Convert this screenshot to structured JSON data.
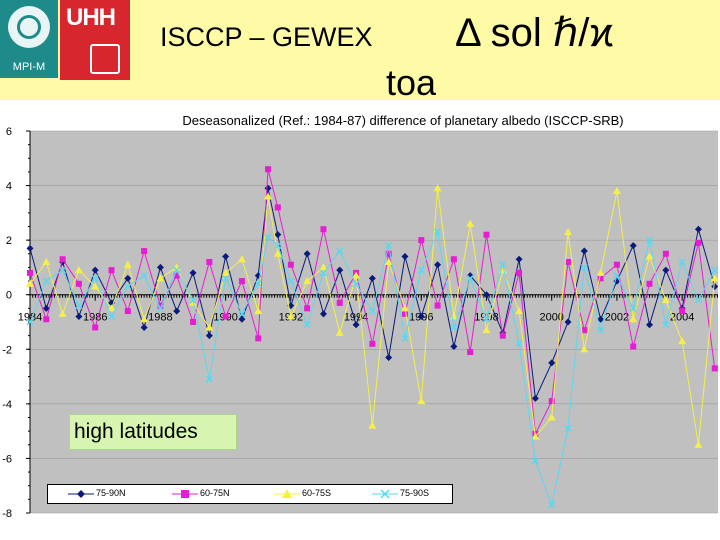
{
  "header": {
    "mpi_logo_text": "MPI-M",
    "uhh_logo_text": "UHH",
    "title": "ISCCP – GEWEX",
    "title_symbols": "Δ sol ℏ/ϰ",
    "title_sub": "toa"
  },
  "annotation": {
    "text": "high latitudes"
  },
  "chart_data": {
    "type": "line",
    "title": "Deseasonalized (Ref.: 1984-87) difference of planetary albedo (ISCCP-SRB)",
    "xlabel": "",
    "ylabel": "",
    "xlim": [
      1984,
      2005.1
    ],
    "ylim": [
      -8,
      6
    ],
    "yticks": [
      6,
      4,
      2,
      0,
      -2,
      -4,
      -6,
      -8
    ],
    "ytick_labels": [
      "6",
      "4",
      "2",
      "0",
      "-2",
      "-4",
      "-6",
      "-8"
    ],
    "xticks": [
      1984,
      1986,
      1988,
      1990,
      1992,
      1994,
      1996,
      1998,
      2000,
      2002,
      2004
    ],
    "xtick_labels": [
      "1984",
      "1986",
      "1988",
      "1990",
      "1992",
      "1994",
      "1996",
      "1998",
      "2000",
      "2002",
      "2004"
    ],
    "grid": true,
    "legend_position": "bottom",
    "x": [
      1984.0,
      1984.5,
      1985.0,
      1985.5,
      1986.0,
      1986.5,
      1987.0,
      1987.5,
      1988.0,
      1988.5,
      1989.0,
      1989.5,
      1990.0,
      1990.5,
      1991.0,
      1991.3,
      1991.6,
      1992.0,
      1992.5,
      1993.0,
      1993.5,
      1994.0,
      1994.5,
      1995.0,
      1995.5,
      1996.0,
      1996.5,
      1997.0,
      1997.5,
      1998.0,
      1998.5,
      1999.0,
      1999.5,
      2000.0,
      2000.5,
      2001.0,
      2001.5,
      2002.0,
      2002.5,
      2003.0,
      2003.5,
      2004.0,
      2004.5,
      2005.0
    ],
    "series": [
      {
        "name": "75-90N",
        "color": "#0a1a7a",
        "marker": "diamond",
        "values": [
          1.7,
          -0.5,
          1.2,
          -0.8,
          0.9,
          -0.3,
          0.6,
          -1.2,
          1.0,
          -0.6,
          0.8,
          -1.5,
          1.4,
          -0.9,
          0.7,
          3.9,
          2.2,
          -0.4,
          1.5,
          -0.7,
          0.9,
          -1.1,
          0.6,
          -2.3,
          1.4,
          -0.8,
          1.1,
          -1.9,
          0.7,
          0.0,
          -1.4,
          1.3,
          -3.8,
          -2.5,
          -1.0,
          1.6,
          -0.9,
          0.5,
          1.8,
          -1.1,
          0.9,
          -0.5,
          2.4,
          0.3
        ]
      },
      {
        "name": "60-75N",
        "color": "#e61ed2",
        "marker": "square",
        "values": [
          0.8,
          -0.9,
          1.3,
          0.4,
          -1.2,
          0.9,
          -0.6,
          1.6,
          -0.4,
          0.7,
          -1.0,
          1.2,
          -0.8,
          0.5,
          -1.6,
          4.6,
          3.2,
          1.1,
          -0.5,
          2.4,
          -0.3,
          0.8,
          -1.8,
          1.5,
          -0.7,
          2.0,
          -0.4,
          1.3,
          -2.1,
          2.2,
          -1.5,
          0.8,
          -5.1,
          -3.9,
          1.2,
          -1.3,
          0.6,
          1.1,
          -1.9,
          0.4,
          1.5,
          -0.6,
          1.9,
          -2.7
        ]
      },
      {
        "name": "60-75S",
        "color": "#f4f048",
        "marker": "triangle",
        "values": [
          0.4,
          1.2,
          -0.7,
          0.9,
          0.3,
          -0.5,
          1.1,
          -0.9,
          0.6,
          1.0,
          -0.3,
          -1.2,
          0.8,
          1.3,
          -0.6,
          3.6,
          1.5,
          -0.8,
          0.5,
          1.0,
          -1.4,
          0.7,
          -4.8,
          1.2,
          -0.5,
          -3.9,
          3.9,
          -0.8,
          2.6,
          -1.3,
          0.9,
          -0.6,
          -5.2,
          -4.5,
          2.3,
          -2.0,
          0.8,
          3.8,
          -0.9,
          1.4,
          -0.2,
          -1.7,
          -5.5,
          0.6
        ]
      },
      {
        "name": "75-90S",
        "color": "#5ad8f0",
        "marker": "x",
        "values": [
          -1.0,
          0.5,
          0.9,
          -0.4,
          0.6,
          -0.8,
          0.3,
          0.7,
          -0.5,
          0.9,
          -0.2,
          -3.1,
          0.6,
          -0.7,
          0.4,
          2.1,
          1.8,
          0.5,
          -1.1,
          0.8,
          1.6,
          0.4,
          -0.6,
          1.8,
          -1.6,
          0.9,
          2.3,
          -1.2,
          0.6,
          -0.9,
          1.1,
          -1.8,
          -6.1,
          -7.7,
          -4.9,
          1.0,
          -1.3,
          0.7,
          -0.5,
          2.0,
          -1.1,
          1.2,
          -0.2,
          0.9
        ]
      }
    ]
  }
}
